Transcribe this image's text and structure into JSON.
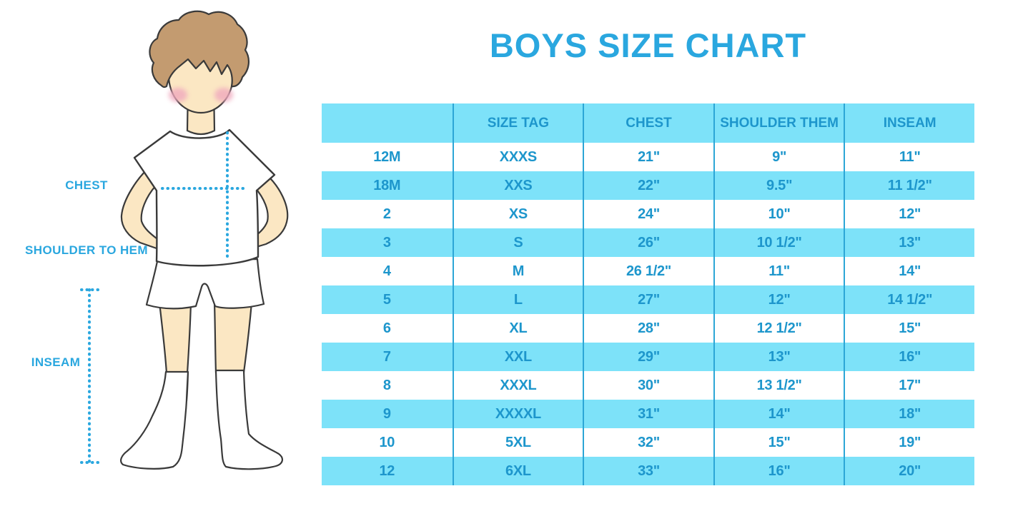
{
  "title": "BOYS SIZE CHART",
  "colors": {
    "background": "#FFFFFF",
    "accent_blue": "#2AA7DF",
    "table_text": "#1D96CC",
    "stripe_cyan": "#7DE2F9",
    "divider_blue": "#2CA6D6",
    "skin": "#FBE7C3",
    "hair": "#C39B70",
    "blush": "#F0A9BE",
    "outline": "#3A3A3A"
  },
  "figure": {
    "description": "boy-in-tshirt-shorts-socks-measurement-illustration",
    "labels": [
      {
        "id": "chest",
        "text": "CHEST"
      },
      {
        "id": "shoulder-to-hem",
        "text": "SHOULDER TO HEM"
      },
      {
        "id": "inseam",
        "text": "INSEAM"
      }
    ]
  },
  "chart_data": {
    "type": "table",
    "title": "BOYS SIZE CHART",
    "columns": [
      "",
      "SIZE TAG",
      "CHEST",
      "SHOULDER THEM",
      "INSEAM"
    ],
    "rows": [
      [
        "12M",
        "XXXS",
        "21\"",
        "9\"",
        "11\""
      ],
      [
        "18M",
        "XXS",
        "22\"",
        "9.5\"",
        "11 1/2\""
      ],
      [
        "2",
        "XS",
        "24\"",
        "10\"",
        "12\""
      ],
      [
        "3",
        "S",
        "26\"",
        "10 1/2\"",
        "13\""
      ],
      [
        "4",
        "M",
        "26 1/2\"",
        "11\"",
        "14\""
      ],
      [
        "5",
        "L",
        "27\"",
        "12\"",
        "14 1/2\""
      ],
      [
        "6",
        "XL",
        "28\"",
        "12 1/2\"",
        "15\""
      ],
      [
        "7",
        "XXL",
        "29\"",
        "13\"",
        "16\""
      ],
      [
        "8",
        "XXXL",
        "30\"",
        "13 1/2\"",
        "17\""
      ],
      [
        "9",
        "XXXXL",
        "31\"",
        "14\"",
        "18\""
      ],
      [
        "10",
        "5XL",
        "32\"",
        "15\"",
        "19\""
      ],
      [
        "12",
        "6XL",
        "33\"",
        "16\"",
        "20\""
      ]
    ],
    "zebra_striping": "white / cyan alternating rows, cyan header",
    "legend_position": "none",
    "grid": "vertical dividers only"
  }
}
